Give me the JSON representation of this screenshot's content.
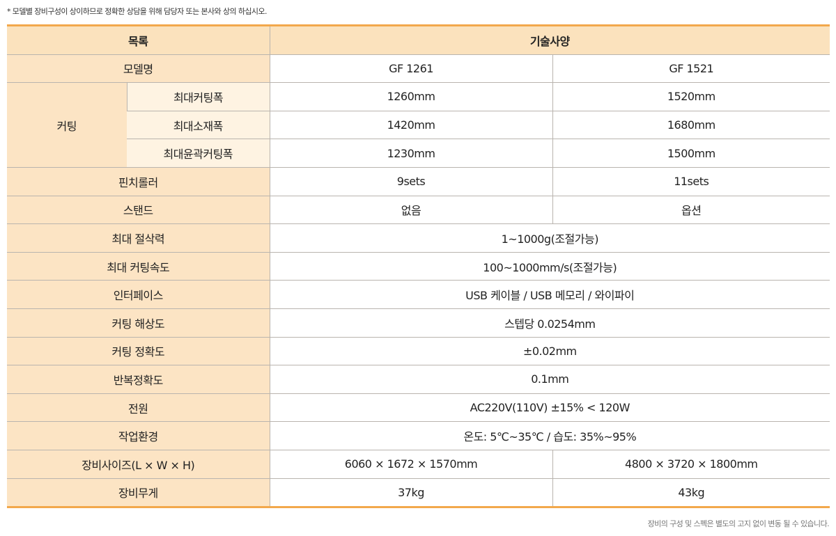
{
  "top_note": "* 모델별 장비구성이 상이하므로 정확한 상담을 위해 담당자 또는 본사와 상의 하십시오.",
  "bottom_note": "장비의 구성 및 스펙은 별도의 고지 없이 변동 될 수 있습니다.",
  "header": {
    "item": "목록",
    "spec": "기술사양"
  },
  "model": {
    "label": "모델명",
    "a": "GF 1261",
    "b": "GF 1521"
  },
  "cutting": {
    "label": "커팅",
    "max_width": {
      "label": "최대커팅폭",
      "a": "1260mm",
      "b": "1520mm"
    },
    "max_material": {
      "label": "최대소재폭",
      "a": "1420mm",
      "b": "1680mm"
    },
    "max_contour": {
      "label": "최대윤곽커팅폭",
      "a": "1230mm",
      "b": "1500mm"
    }
  },
  "pinch": {
    "label": "핀치롤러",
    "a": "9sets",
    "b": "11sets"
  },
  "stand": {
    "label": "스탠드",
    "a": "없음",
    "b": "옵션"
  },
  "force": {
    "label": "최대 절삭력",
    "value": "1~1000g(조절가능)"
  },
  "speed": {
    "label": "최대 커팅속도",
    "value": "100~1000mm/s(조절가능)"
  },
  "interface": {
    "label": "인터페이스",
    "value": "USB 케이블 / USB 메모리 / 와이파이"
  },
  "resolution": {
    "label": "커팅 해상도",
    "value": "스텝당 0.0254mm"
  },
  "accuracy": {
    "label": "커팅 정확도",
    "value": "±0.02mm"
  },
  "repeat": {
    "label": "반복정확도",
    "value": "0.1mm"
  },
  "power": {
    "label": "전원",
    "value": "AC220V(110V) ±15% < 120W"
  },
  "env": {
    "label": "작업환경",
    "value": "온도: 5℃~35℃ / 습도: 35%~95%"
  },
  "size": {
    "label": "장비사이즈(L × W × H)",
    "a": "6060 × 1672 × 1570mm",
    "b": "4800 × 3720 × 1800mm"
  },
  "weight": {
    "label": "장비무게",
    "a": "37kg",
    "b": "43kg"
  }
}
